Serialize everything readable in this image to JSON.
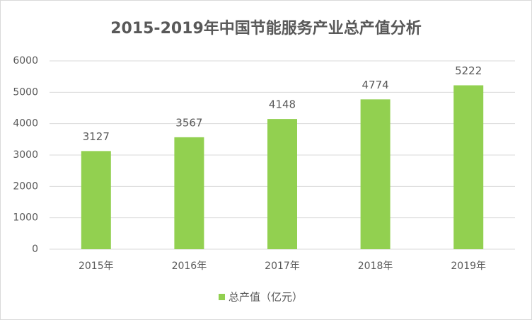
{
  "chart_data": {
    "type": "bar",
    "title": "2015-2019年中国节能服务产业总产值分析",
    "categories": [
      "2015年",
      "2016年",
      "2017年",
      "2018年",
      "2019年"
    ],
    "series": [
      {
        "name": "总产值（亿元）",
        "color": "#92d050",
        "values": [
          3127,
          3567,
          4148,
          4774,
          5222
        ]
      }
    ],
    "ylim": [
      0,
      6000
    ],
    "yticks": [
      0,
      1000,
      2000,
      3000,
      4000,
      5000,
      6000
    ],
    "grid": true,
    "legend": "bottom"
  }
}
